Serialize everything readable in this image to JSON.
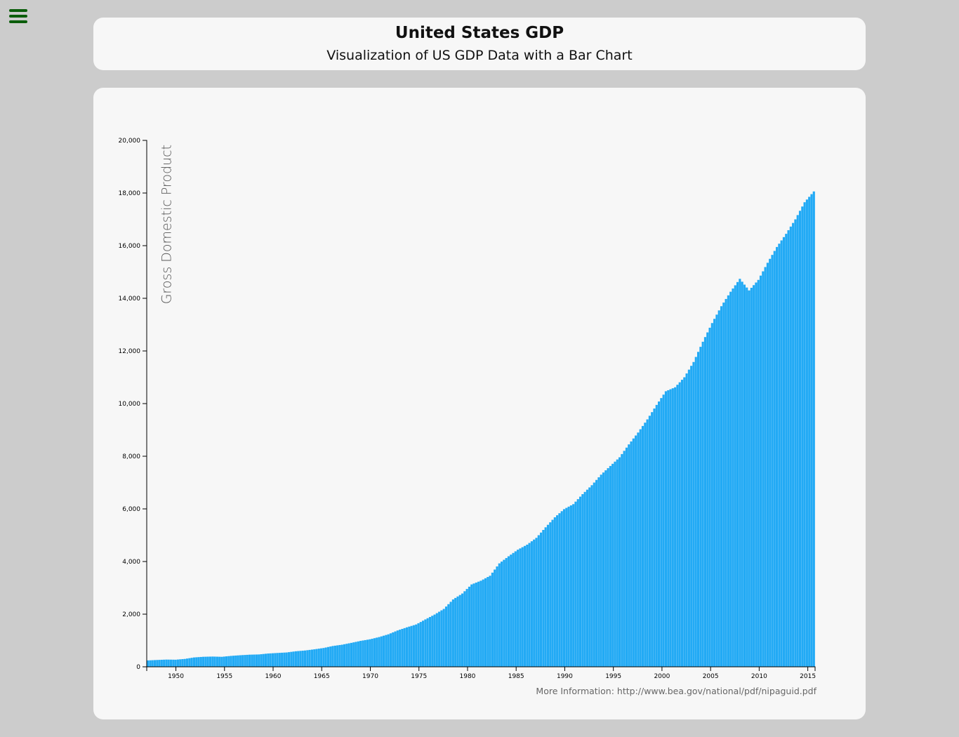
{
  "header": {
    "title": "United States GDP",
    "subtitle": "Visualization of US GDP Data with a Bar Chart"
  },
  "menu": {
    "icon": "hamburger-menu-icon"
  },
  "colors": {
    "bar": "#22aaf5",
    "menu": "#0b5d0b",
    "background": "#cccccc",
    "card": "#f7f7f7"
  },
  "chart_data": {
    "type": "bar",
    "title": "",
    "xlabel": "",
    "ylabel": "Gross Domestic Product",
    "ylim": [
      0,
      20000
    ],
    "xlim": [
      1947,
      2015.75
    ],
    "yticks": [
      0,
      2000,
      4000,
      6000,
      8000,
      10000,
      12000,
      14000,
      16000,
      18000,
      20000
    ],
    "xticks": [
      1950,
      1955,
      1960,
      1965,
      1970,
      1975,
      1980,
      1985,
      1990,
      1995,
      2000,
      2005,
      2010,
      2015
    ],
    "grid": false,
    "frequency": "quarterly",
    "start": 1947,
    "annual_start_values": [
      243,
      260,
      275,
      270,
      300,
      356,
      381,
      390,
      380,
      415,
      440,
      461,
      470,
      505,
      526,
      545,
      591,
      620,
      665,
      715,
      791,
      840,
      910,
      985,
      1045,
      1130,
      1235,
      1381,
      1500,
      1608,
      1800,
      1985,
      2200,
      2560,
      2785,
      3130,
      3270,
      3460,
      3930,
      4200,
      4450,
      4640,
      4900,
      5300,
      5680,
      5990,
      6180,
      6560,
      6900,
      7300,
      7630,
      7960,
      8450,
      8900,
      9400,
      9950,
      10470,
      10620,
      11000,
      11580,
      12350,
      13060,
      13700,
      14250,
      14740,
      14300,
      14700,
      15350,
      15950,
      16450,
      17000,
      17650,
      18060
    ],
    "source_note": "More Information: http://www.bea.gov/national/pdf/nipaguid.pdf"
  }
}
